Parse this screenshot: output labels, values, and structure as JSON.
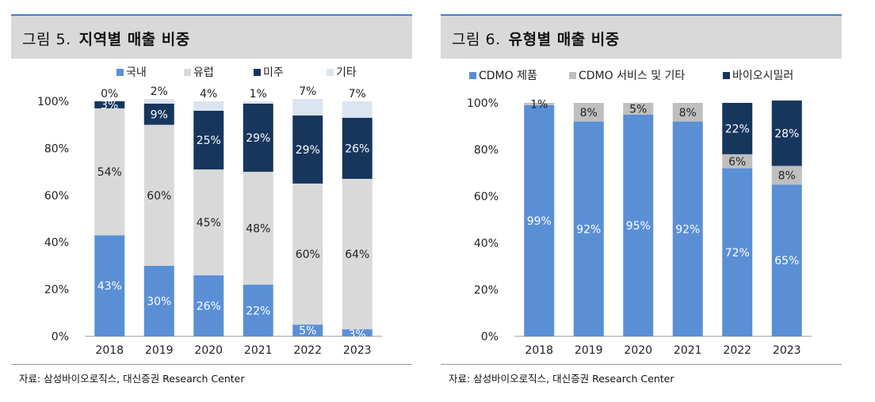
{
  "chart_data": [
    {
      "type": "bar",
      "stacked": true,
      "figure_label": "그림 5.",
      "title": "지역별 매출 비중",
      "categories": [
        "2018",
        "2019",
        "2020",
        "2021",
        "2022",
        "2023"
      ],
      "yticks": [
        "0%",
        "20%",
        "40%",
        "60%",
        "80%",
        "100%"
      ],
      "ylim": [
        0,
        100
      ],
      "legend_position": "top",
      "series": [
        {
          "name": "국내",
          "color": "#5a8fd6",
          "values": [
            43,
            30,
            26,
            22,
            5,
            3
          ],
          "labels": [
            "43%",
            "30%",
            "26%",
            "22%",
            "5%",
            "3%"
          ],
          "label_color": "#ffffff"
        },
        {
          "name": "유럽",
          "color": "#d9d9d9",
          "values": [
            54,
            60,
            45,
            48,
            60,
            64
          ],
          "labels": [
            "54%",
            "60%",
            "45%",
            "48%",
            "60%",
            "64%"
          ],
          "label_color": "#222222"
        },
        {
          "name": "미주",
          "color": "#17365d",
          "values": [
            3,
            9,
            25,
            29,
            29,
            26
          ],
          "labels": [
            "3%",
            "9%",
            "25%",
            "29%",
            "29%",
            "26%"
          ],
          "label_color": "#ffffff"
        },
        {
          "name": "기타",
          "color": "#dbe5f1",
          "values": [
            0,
            2,
            4,
            1,
            7,
            7
          ],
          "labels": [
            "0%",
            "2%",
            "4%",
            "1%",
            "7%",
            "7%"
          ],
          "label_color": "#222222"
        }
      ],
      "source": "자료: 삼성바이오로직스, 대신증권 Research Center"
    },
    {
      "type": "bar",
      "stacked": true,
      "figure_label": "그림 6.",
      "title": "유형별 매출 비중",
      "categories": [
        "2018",
        "2019",
        "2020",
        "2021",
        "2022",
        "2023"
      ],
      "yticks": [
        "0%",
        "20%",
        "40%",
        "60%",
        "80%",
        "100%"
      ],
      "ylim": [
        0,
        100
      ],
      "legend_position": "top",
      "series": [
        {
          "name": "CDMO 제품",
          "color": "#5a8fd6",
          "values": [
            99,
            92,
            95,
            92,
            72,
            65
          ],
          "labels": [
            "99%",
            "92%",
            "95%",
            "92%",
            "72%",
            "65%"
          ],
          "label_color": "#ffffff"
        },
        {
          "name": "CDMO 서비스 및 기타",
          "color": "#bfbfbf",
          "values": [
            1,
            8,
            5,
            8,
            6,
            8
          ],
          "labels": [
            "1%",
            "8%",
            "5%",
            "8%",
            "6%",
            "8%"
          ],
          "label_color": "#222222"
        },
        {
          "name": "바이오시밀러",
          "color": "#17365d",
          "values": [
            0,
            0,
            0,
            0,
            22,
            28
          ],
          "labels": [
            "",
            "",
            "",
            "",
            "22%",
            "28%"
          ],
          "label_color": "#ffffff"
        }
      ],
      "source": "자료: 삼성바이오로직스, 대신증권 Research Center"
    }
  ]
}
